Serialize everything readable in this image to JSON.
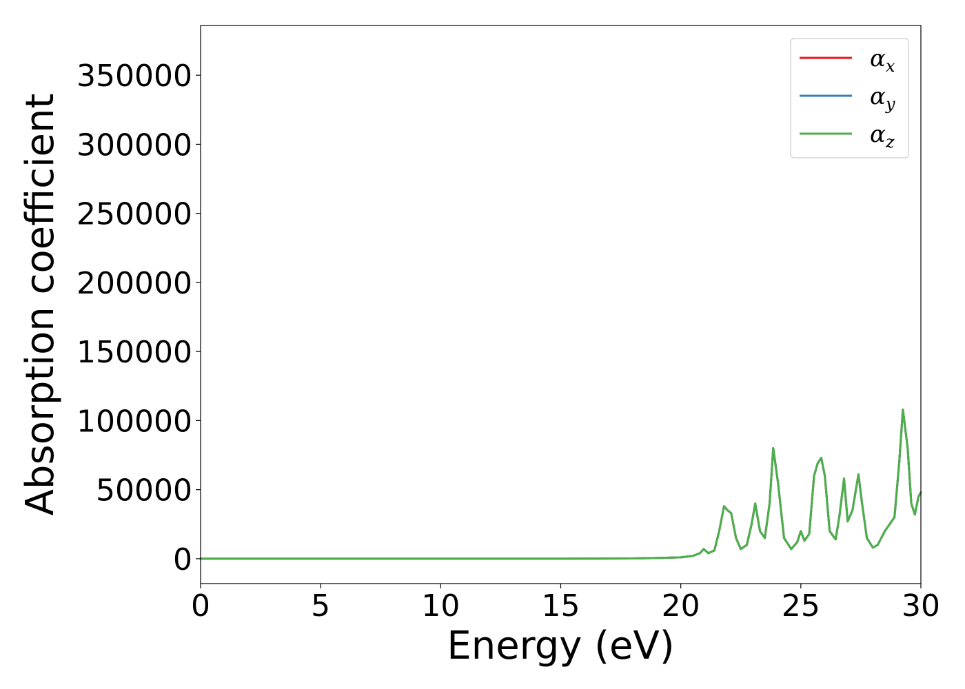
{
  "chart_data": {
    "type": "line",
    "title": "",
    "xlabel": "Energy (eV)",
    "ylabel": "Absorption coefficient",
    "xlim": [
      0,
      30
    ],
    "ylim": [
      -18000,
      386000
    ],
    "xticks": [
      0,
      5,
      10,
      15,
      20,
      25,
      30
    ],
    "yticks": [
      0,
      50000,
      100000,
      150000,
      200000,
      250000,
      300000,
      350000
    ],
    "xtick_labels": [
      "0",
      "5",
      "10",
      "15",
      "20",
      "25",
      "30"
    ],
    "ytick_labels": [
      "0",
      "50000",
      "100000",
      "150000",
      "200000",
      "250000",
      "300000",
      "350000"
    ],
    "grid": false,
    "legend_position": "top-right",
    "series": [
      {
        "name": "α_x",
        "label_main": "α",
        "label_sub": "x",
        "color": "#e41a1c",
        "x": [
          0,
          5,
          10,
          15,
          18,
          19,
          20,
          20.5,
          20.8,
          20.95,
          21.15,
          21.4,
          21.6,
          21.8,
          21.95,
          22.1,
          22.3,
          22.5,
          22.75,
          22.95,
          23.1,
          23.3,
          23.5,
          23.7,
          23.85,
          24.05,
          24.3,
          24.6,
          24.85,
          25.0,
          25.15,
          25.35,
          25.55,
          25.7,
          25.85,
          26.0,
          26.2,
          26.45,
          26.6,
          26.8,
          26.95,
          27.15,
          27.4,
          27.55,
          27.75,
          28.0,
          28.2,
          28.5,
          28.7,
          28.9,
          29.1,
          29.25,
          29.45,
          29.6,
          29.75,
          29.9,
          30.0
        ],
        "y": [
          0,
          0,
          0,
          0,
          200,
          500,
          1000,
          2000,
          4000,
          7000,
          4000,
          6000,
          20000,
          38000,
          35000,
          33000,
          15000,
          7000,
          10000,
          25000,
          40000,
          20000,
          15000,
          40000,
          80000,
          55000,
          15000,
          7000,
          12000,
          20000,
          13000,
          18000,
          60000,
          69000,
          73000,
          60000,
          20000,
          14000,
          30000,
          58000,
          27000,
          35000,
          61000,
          40000,
          15000,
          8000,
          10000,
          20000,
          25000,
          30000,
          70000,
          108000,
          80000,
          40000,
          32000,
          45000,
          48000
        ]
      },
      {
        "name": "α_y",
        "label_main": "α",
        "label_sub": "y",
        "color": "#377eb8",
        "x": [
          0,
          5,
          10,
          15,
          18,
          19,
          20,
          20.5,
          20.8,
          20.95,
          21.15,
          21.4,
          21.6,
          21.8,
          21.95,
          22.1,
          22.3,
          22.5,
          22.75,
          22.95,
          23.1,
          23.3,
          23.5,
          23.7,
          23.85,
          24.05,
          24.3,
          24.6,
          24.85,
          25.0,
          25.15,
          25.35,
          25.55,
          25.7,
          25.85,
          26.0,
          26.2,
          26.45,
          26.6,
          26.8,
          26.95,
          27.15,
          27.4,
          27.55,
          27.75,
          28.0,
          28.2,
          28.5,
          28.7,
          28.9,
          29.1,
          29.25,
          29.45,
          29.6,
          29.75,
          29.9,
          30.0
        ],
        "y": [
          0,
          0,
          0,
          0,
          200,
          500,
          1000,
          2000,
          4000,
          7000,
          4000,
          6000,
          20000,
          38000,
          35000,
          33000,
          15000,
          7000,
          10000,
          25000,
          40000,
          20000,
          15000,
          40000,
          80000,
          55000,
          15000,
          7000,
          12000,
          20000,
          13000,
          18000,
          60000,
          69000,
          73000,
          60000,
          20000,
          14000,
          30000,
          58000,
          27000,
          35000,
          61000,
          40000,
          15000,
          8000,
          10000,
          20000,
          25000,
          30000,
          70000,
          108000,
          80000,
          40000,
          32000,
          45000,
          48000
        ]
      },
      {
        "name": "α_z",
        "label_main": "α",
        "label_sub": "z",
        "color": "#4daf4a",
        "x": [
          0,
          5,
          10,
          15,
          18,
          19,
          20,
          20.5,
          20.8,
          20.95,
          21.15,
          21.4,
          21.6,
          21.8,
          21.95,
          22.1,
          22.3,
          22.5,
          22.75,
          22.95,
          23.1,
          23.3,
          23.5,
          23.7,
          23.85,
          24.05,
          24.3,
          24.6,
          24.85,
          25.0,
          25.15,
          25.35,
          25.55,
          25.7,
          25.85,
          26.0,
          26.2,
          26.45,
          26.6,
          26.8,
          26.95,
          27.15,
          27.4,
          27.55,
          27.75,
          28.0,
          28.2,
          28.5,
          28.7,
          28.9,
          29.1,
          29.25,
          29.45,
          29.6,
          29.75,
          29.9,
          30.0
        ],
        "y": [
          0,
          0,
          0,
          0,
          200,
          500,
          1000,
          2000,
          4000,
          7000,
          4000,
          6000,
          20000,
          38000,
          35000,
          33000,
          15000,
          7000,
          10000,
          25000,
          40000,
          20000,
          15000,
          40000,
          80000,
          55000,
          15000,
          7000,
          12000,
          20000,
          13000,
          18000,
          60000,
          69000,
          73000,
          60000,
          20000,
          14000,
          30000,
          58000,
          27000,
          35000,
          61000,
          40000,
          15000,
          8000,
          10000,
          20000,
          25000,
          30000,
          70000,
          108000,
          80000,
          40000,
          32000,
          45000,
          48000
        ]
      }
    ]
  }
}
